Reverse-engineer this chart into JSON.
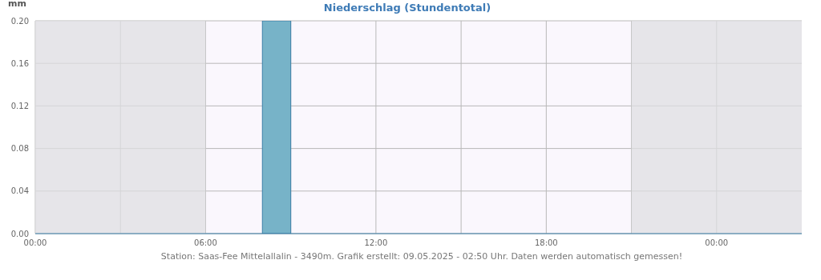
{
  "chart_data": {
    "type": "histogram",
    "title": "Niederschlag (Stundentotal)",
    "ylabel": "mm",
    "bins": [
      8,
      9
    ],
    "values": [
      0.2
    ],
    "color": "#77b3c8",
    "xlim": [
      0,
      27
    ],
    "xticks": [
      {
        "value": 0,
        "label": "00:00"
      },
      {
        "value": 3,
        "label": null
      },
      {
        "value": 6,
        "label": "06:00"
      },
      {
        "value": 9,
        "label": null
      },
      {
        "value": 12,
        "label": "12:00"
      },
      {
        "value": 15,
        "label": null
      },
      {
        "value": 18,
        "label": "18:00"
      },
      {
        "value": 21,
        "label": null
      },
      {
        "value": 24,
        "label": "00:00"
      }
    ],
    "ylim": [
      0,
      0.2
    ],
    "yticks": [
      {
        "value": 0,
        "label": "0.00"
      },
      {
        "value": 0.04,
        "label": "0.04"
      },
      {
        "value": 0.08,
        "label": "0.08"
      },
      {
        "value": 0.12,
        "label": "0.12"
      },
      {
        "value": 0.16,
        "label": "0.16"
      },
      {
        "value": 0.2,
        "label": "0.20"
      }
    ],
    "grid": true,
    "bands": [
      {
        "axis": "x",
        "from": 0,
        "to": 6,
        "color": "#dfdfe2"
      },
      {
        "axis": "x",
        "from": 21,
        "to": 27,
        "color": "#dfdfe2"
      }
    ],
    "annotations": [
      "Station: Saas-Fee Mittelallalin - 3490m. Grafik erstellt: 09.05.2025 - 02:50 Uhr. Daten werden automatisch gemessen!"
    ]
  }
}
